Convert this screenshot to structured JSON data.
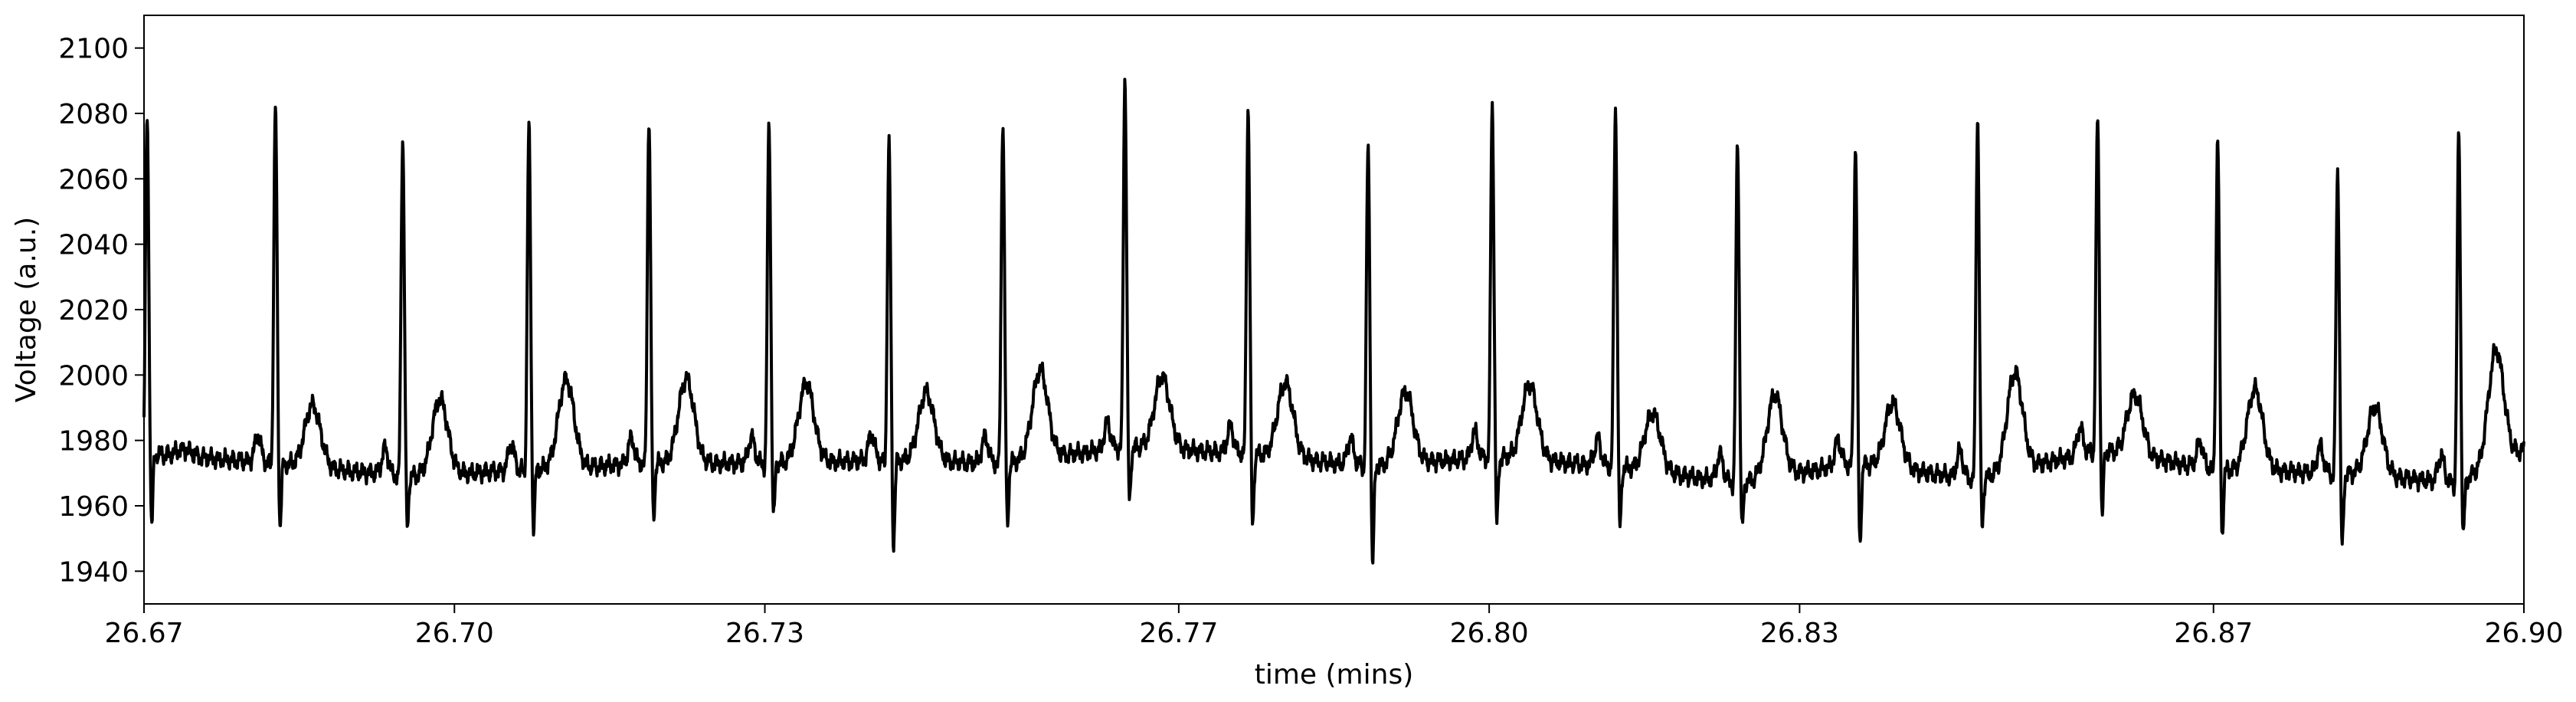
{
  "chart_data": {
    "type": "line",
    "title": "",
    "xlabel": "time (mins)",
    "ylabel": "Voltage (a.u.)",
    "xlim": [
      26.67,
      26.9
    ],
    "ylim": [
      1930,
      2110
    ],
    "xticks": [
      26.67,
      26.7,
      26.73,
      26.77,
      26.8,
      26.83,
      26.87,
      26.9
    ],
    "xtick_labels": [
      "26.67",
      "26.70",
      "26.73",
      "26.77",
      "26.80",
      "26.83",
      "26.87",
      "26.90"
    ],
    "yticks": [
      1940,
      1960,
      1980,
      2000,
      2020,
      2040,
      2060,
      2080,
      2100
    ],
    "ytick_labels": [
      "1940",
      "1960",
      "1980",
      "2000",
      "2020",
      "2040",
      "2060",
      "2080",
      "2100"
    ],
    "grid": false,
    "line_color": "#000000",
    "beats": [
      {
        "t": 26.6703,
        "peak": 2079,
        "trough": 1952,
        "t_wave": 1978,
        "baseline": 1976
      },
      {
        "t": 26.6827,
        "peak": 2082,
        "trough": 1952,
        "t_wave": 1992,
        "baseline": 1973
      },
      {
        "t": 26.695,
        "peak": 2073,
        "trough": 1951,
        "t_wave": 1992,
        "baseline": 1969
      },
      {
        "t": 26.7072,
        "peak": 2076,
        "trough": 1951,
        "t_wave": 1998,
        "baseline": 1971
      },
      {
        "t": 26.7188,
        "peak": 2079,
        "trough": 1954,
        "t_wave": 1999,
        "baseline": 1973
      },
      {
        "t": 26.7304,
        "peak": 2077,
        "trough": 1954,
        "t_wave": 1997,
        "baseline": 1973
      },
      {
        "t": 26.742,
        "peak": 2071,
        "trough": 1946,
        "t_wave": 1995,
        "baseline": 1974
      },
      {
        "t": 26.753,
        "peak": 2078,
        "trough": 1952,
        "t_wave": 2000,
        "baseline": 1973
      },
      {
        "t": 26.7648,
        "peak": 2091,
        "trough": 1959,
        "t_wave": 2000,
        "baseline": 1978
      },
      {
        "t": 26.7767,
        "peak": 2082,
        "trough": 1952,
        "t_wave": 1999,
        "baseline": 1976
      },
      {
        "t": 26.7883,
        "peak": 2070,
        "trough": 1940,
        "t_wave": 1994,
        "baseline": 1972
      },
      {
        "t": 26.8003,
        "peak": 2083,
        "trough": 1952,
        "t_wave": 1998,
        "baseline": 1975
      },
      {
        "t": 26.8122,
        "peak": 2082,
        "trough": 1951,
        "t_wave": 1990,
        "baseline": 1972
      },
      {
        "t": 26.824,
        "peak": 2072,
        "trough": 1950,
        "t_wave": 1992,
        "baseline": 1967
      },
      {
        "t": 26.8354,
        "peak": 2071,
        "trough": 1946,
        "t_wave": 1993,
        "baseline": 1973
      },
      {
        "t": 26.8472,
        "peak": 2079,
        "trough": 1951,
        "t_wave": 1998,
        "baseline": 1968
      },
      {
        "t": 26.8588,
        "peak": 2079,
        "trough": 1955,
        "t_wave": 1996,
        "baseline": 1977
      },
      {
        "t": 26.8704,
        "peak": 2073,
        "trough": 1949,
        "t_wave": 1996,
        "baseline": 1971
      },
      {
        "t": 26.882,
        "peak": 2063,
        "trough": 1945,
        "t_wave": 1991,
        "baseline": 1970
      },
      {
        "t": 26.8937,
        "peak": 2074,
        "trough": 1948,
        "t_wave": 2002,
        "baseline": 1967
      }
    ],
    "end_baseline": 1977
  }
}
